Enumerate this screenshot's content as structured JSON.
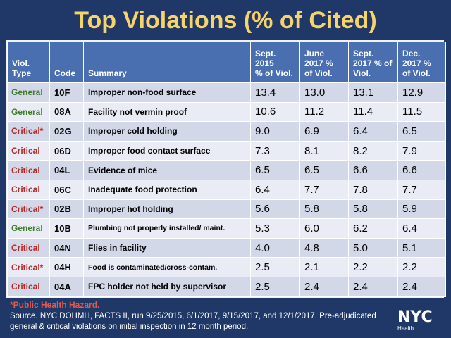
{
  "title": "Top Violations (% of Cited)",
  "table": {
    "headers": {
      "type": "Viol.\nType",
      "code": "Code",
      "summary": "Summary",
      "sept2015": "Sept.\n2015\n% of Viol.",
      "june2017": "June\n2017 %\nof Viol.",
      "sept2017": "Sept.\n2017 % of\nViol.",
      "dec2017": "Dec.\n2017 %\nof Viol."
    },
    "rows": [
      {
        "type": "General",
        "code": "10F",
        "summary": "Improper non-food surface",
        "v1": "13.4",
        "v2": "13.0",
        "v3": "13.1",
        "v4": "12.9"
      },
      {
        "type": "General",
        "code": "08A",
        "summary": "Facility not vermin proof",
        "v1": "10.6",
        "v2": "11.2",
        "v3": "11.4",
        "v4": "11.5"
      },
      {
        "type": "Critical*",
        "code": "02G",
        "summary": "Improper cold holding",
        "v1": "9.0",
        "v2": "6.9",
        "v3": "6.4",
        "v4": "6.5"
      },
      {
        "type": "Critical",
        "code": "06D",
        "summary": "Improper food contact surface",
        "v1": "7.3",
        "v2": "8.1",
        "v3": "8.2",
        "v4": "7.9"
      },
      {
        "type": "Critical",
        "code": "04L",
        "summary": "Evidence of mice",
        "v1": "6.5",
        "v2": "6.5",
        "v3": "6.6",
        "v4": "6.6"
      },
      {
        "type": "Critical",
        "code": "06C",
        "summary": "Inadequate food protection",
        "v1": "6.4",
        "v2": "7.7",
        "v3": "7.8",
        "v4": "7.7"
      },
      {
        "type": "Critical*",
        "code": "02B",
        "summary": "Improper hot holding",
        "v1": "5.6",
        "v2": "5.8",
        "v3": "5.8",
        "v4": "5.9"
      },
      {
        "type": "General",
        "code": "10B",
        "summary": "Plumbing not properly installed/ maint.",
        "v1": "5.3",
        "v2": "6.0",
        "v3": "6.2",
        "v4": "6.4"
      },
      {
        "type": "Critical",
        "code": "04N",
        "summary": "Flies in facility",
        "v1": "4.0",
        "v2": "4.8",
        "v3": "5.0",
        "v4": "5.1"
      },
      {
        "type": "Critical*",
        "code": "04H",
        "summary": "Food is contaminated/cross-contam.",
        "v1": "2.5",
        "v2": "2.1",
        "v3": "2.2",
        "v4": "2.2"
      },
      {
        "type": "Critical",
        "code": "04A",
        "summary": "FPC holder not held by supervisor",
        "v1": "2.5",
        "v2": "2.4",
        "v3": "2.4",
        "v4": "2.4"
      }
    ]
  },
  "footnote": "*Public Health Hazard.",
  "source": "Source. NYC DOHMH, FACTS II, run 9/25/2015, 6/1/2017, 9/15/2017, and 12/1/2017. Pre-adjudicated general & critical violations on initial inspection in 12 month period.",
  "logo": {
    "mark": "NYC",
    "sub": "Health"
  },
  "colors": {
    "background": "#1f3868",
    "title": "#f7d36b",
    "header": "#4a6fb0",
    "general": "#3f7d2d",
    "critical": "#b32a2a",
    "footnote": "#e25a4f"
  }
}
